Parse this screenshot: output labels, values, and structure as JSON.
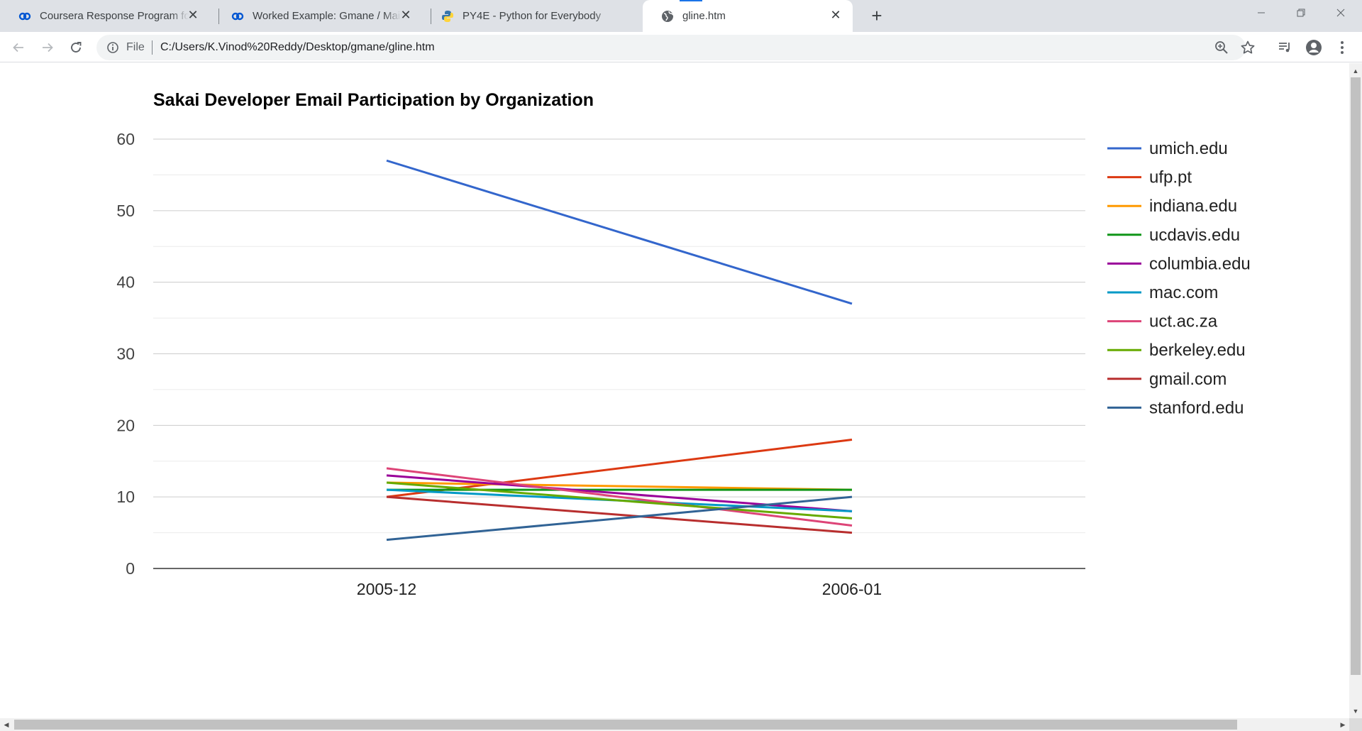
{
  "browser": {
    "tabs": [
      {
        "title": "Coursera Response Program for A",
        "icon": "coursera-icon",
        "active": false
      },
      {
        "title": "Worked Example: Gmane / Mail -",
        "icon": "coursera-icon",
        "active": false
      },
      {
        "title": "PY4E - Python for Everybody",
        "icon": "python-icon",
        "active": false
      },
      {
        "title": "gline.htm",
        "icon": "globe-icon",
        "active": true
      }
    ],
    "address": {
      "scheme_label": "File",
      "url": "C:/Users/K.Vinod%20Reddy/Desktop/gmane/gline.htm"
    }
  },
  "colors": {
    "umich": "#3366cc",
    "ufp": "#dc3912",
    "indiana": "#ff9900",
    "ucdavis": "#109618",
    "columbia": "#990099",
    "mac": "#0099c6",
    "uct": "#dd4477",
    "berkeley": "#66aa00",
    "gmail": "#b82e2e",
    "stanford": "#316395"
  },
  "chart_data": {
    "type": "line",
    "title": "Sakai Developer Email Participation by Organization",
    "xlabel": "",
    "ylabel": "",
    "categories": [
      "2005-12",
      "2006-01"
    ],
    "ylim": [
      0,
      60
    ],
    "yticks": [
      0,
      10,
      20,
      30,
      40,
      50,
      60
    ],
    "grid": true,
    "legend": "right",
    "series": [
      {
        "name": "umich.edu",
        "values": [
          57,
          37
        ],
        "color": "#3366cc"
      },
      {
        "name": "ufp.pt",
        "values": [
          10,
          18
        ],
        "color": "#dc3912"
      },
      {
        "name": "indiana.edu",
        "values": [
          12,
          11
        ],
        "color": "#ff9900"
      },
      {
        "name": "ucdavis.edu",
        "values": [
          11,
          11
        ],
        "color": "#109618"
      },
      {
        "name": "columbia.edu",
        "values": [
          13,
          8
        ],
        "color": "#990099"
      },
      {
        "name": "mac.com",
        "values": [
          11,
          8
        ],
        "color": "#0099c6"
      },
      {
        "name": "uct.ac.za",
        "values": [
          14,
          6
        ],
        "color": "#dd4477"
      },
      {
        "name": "berkeley.edu",
        "values": [
          12,
          7
        ],
        "color": "#66aa00"
      },
      {
        "name": "gmail.com",
        "values": [
          10,
          5
        ],
        "color": "#b82e2e"
      },
      {
        "name": "stanford.edu",
        "values": [
          4,
          10
        ],
        "color": "#316395"
      }
    ]
  }
}
